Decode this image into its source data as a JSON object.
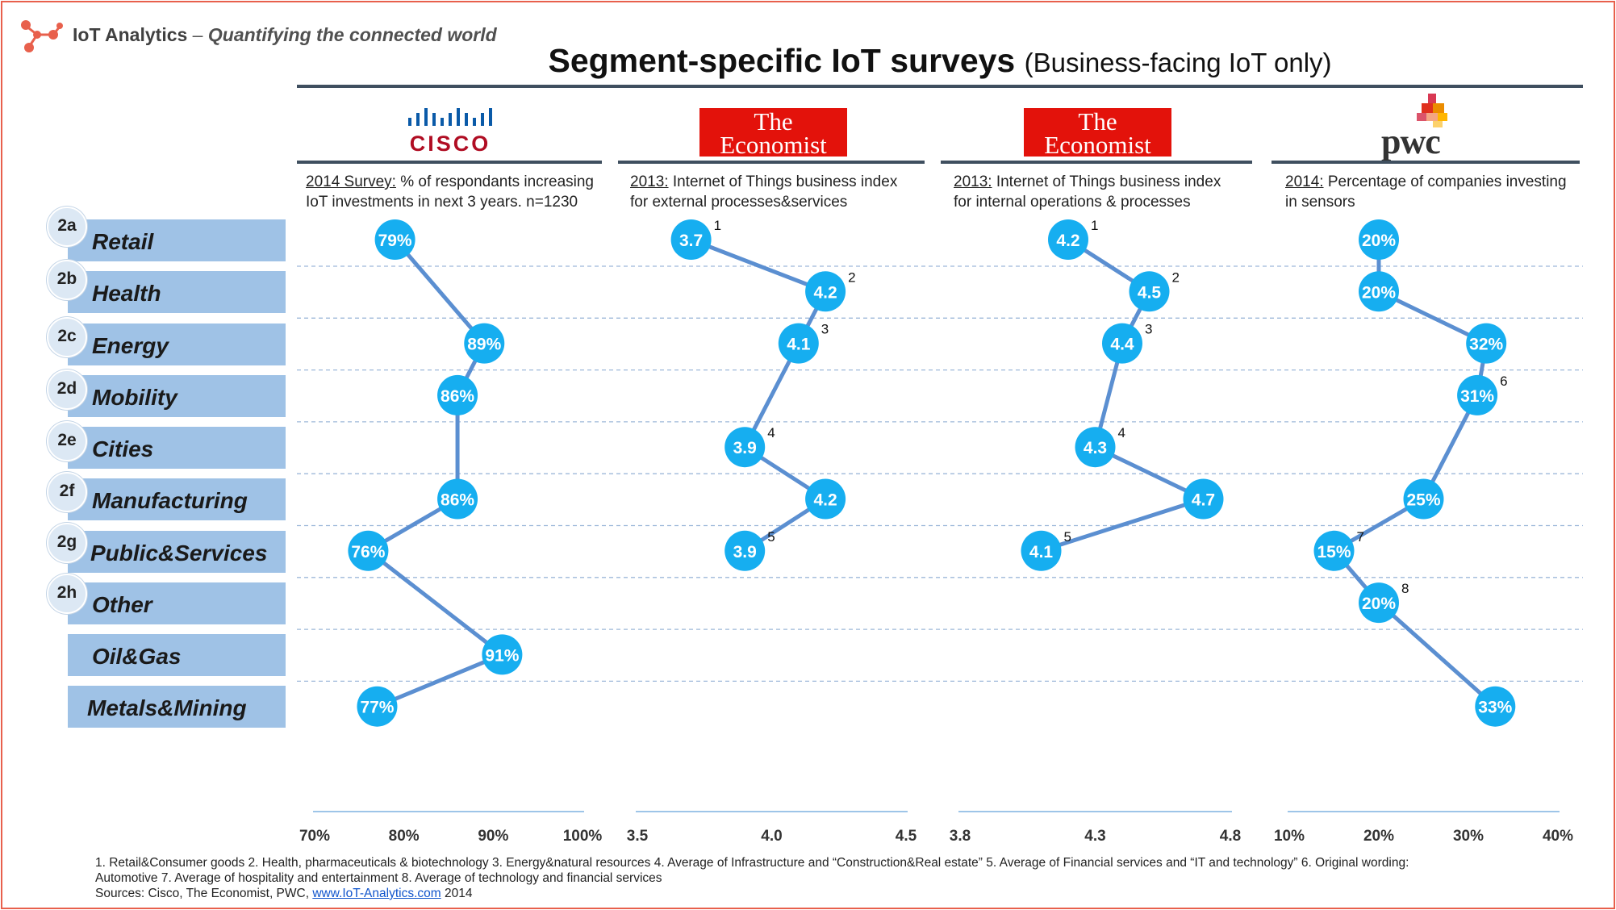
{
  "brand": {
    "name": "IoT Analytics",
    "dash": " – ",
    "tagline": "Quantifying the connected world"
  },
  "title": {
    "main": "Segment-specific IoT surveys",
    "sub": "(Business-facing IoT only)"
  },
  "logos": {
    "cisco": "CISCO",
    "economist_line1": "The",
    "economist_line2": "Economist",
    "pwc": "pwc"
  },
  "descriptions": [
    {
      "prefix": "2014 Survey:",
      "line1": " % of respondants increasing",
      "line2": "IoT investments in next 3 years. n=1230"
    },
    {
      "prefix": "2013:",
      "line1": " Internet of Things business index",
      "line2": "for external processes&services"
    },
    {
      "prefix": "2013:",
      "line1": " Internet of Things business index",
      "line2": "for internal operations & processes"
    },
    {
      "prefix": "2014:",
      "line1": " Percentage of companies investing",
      "line2": "in sensors"
    }
  ],
  "categories": [
    {
      "id": "2a",
      "label": "Retail"
    },
    {
      "id": "2b",
      "label": "Health"
    },
    {
      "id": "2c",
      "label": "Energy"
    },
    {
      "id": "2d",
      "label": "Mobility"
    },
    {
      "id": "2e",
      "label": "Cities"
    },
    {
      "id": "2f",
      "label": "Manufacturing"
    },
    {
      "id": "2g",
      "label": "Public&Services"
    },
    {
      "id": "2h",
      "label": "Other"
    },
    {
      "id": "",
      "label": "Oil&Gas"
    },
    {
      "id": "",
      "label": "Metals&Mining"
    }
  ],
  "colors": {
    "marker": "#16aef0",
    "line": "#5b8fd1",
    "bar": "#9fc2e6",
    "grid": "#9db8d9",
    "accent": "#e8604c"
  },
  "chart_data": [
    {
      "type": "line",
      "source": "Cisco",
      "categories": [
        "Retail",
        "Health",
        "Energy",
        "Mobility",
        "Cities",
        "Manufacturing",
        "Public&Services",
        "Other",
        "Oil&Gas",
        "Metals&Mining"
      ],
      "values": [
        79,
        null,
        89,
        86,
        null,
        86,
        76,
        null,
        91,
        77
      ],
      "labels": [
        "79%",
        null,
        "89%",
        "86%",
        null,
        "86%",
        "76%",
        null,
        "91%",
        "77%"
      ],
      "footnotes": [
        null,
        null,
        null,
        null,
        null,
        null,
        null,
        null,
        null,
        null
      ],
      "xlim": [
        70,
        100
      ],
      "ticks": [
        "70%",
        "80%",
        "90%",
        "100%"
      ]
    },
    {
      "type": "line",
      "source": "The Economist (external)",
      "categories": [
        "Retail",
        "Health",
        "Energy",
        "Mobility",
        "Cities",
        "Manufacturing",
        "Public&Services",
        "Other",
        "Oil&Gas",
        "Metals&Mining"
      ],
      "values": [
        3.7,
        4.2,
        4.1,
        null,
        3.9,
        4.2,
        3.9,
        null,
        null,
        null
      ],
      "labels": [
        "3.7",
        "4.2",
        "4.1",
        null,
        "3.9",
        "4.2",
        "3.9",
        null,
        null,
        null
      ],
      "footnotes": [
        "1",
        "2",
        "3",
        null,
        "4",
        null,
        "5",
        null,
        null,
        null
      ],
      "xlim": [
        3.5,
        4.5
      ],
      "ticks": [
        "3.5",
        "4.0",
        "4.5"
      ]
    },
    {
      "type": "line",
      "source": "The Economist (internal)",
      "categories": [
        "Retail",
        "Health",
        "Energy",
        "Mobility",
        "Cities",
        "Manufacturing",
        "Public&Services",
        "Other",
        "Oil&Gas",
        "Metals&Mining"
      ],
      "values": [
        4.2,
        4.5,
        4.4,
        null,
        4.3,
        4.7,
        4.1,
        null,
        null,
        null
      ],
      "labels": [
        "4.2",
        "4.5",
        "4.4",
        null,
        "4.3",
        "4.7",
        "4.1",
        null,
        null,
        null
      ],
      "footnotes": [
        "1",
        "2",
        "3",
        null,
        "4",
        null,
        "5",
        null,
        null,
        null
      ],
      "xlim": [
        3.8,
        4.8
      ],
      "ticks": [
        "3.8",
        "4.3",
        "4.8"
      ]
    },
    {
      "type": "line",
      "source": "PWC",
      "categories": [
        "Retail",
        "Health",
        "Energy",
        "Mobility",
        "Cities",
        "Manufacturing",
        "Public&Services",
        "Other",
        "Oil&Gas",
        "Metals&Mining"
      ],
      "values": [
        20,
        20,
        32,
        31,
        null,
        25,
        15,
        20,
        null,
        33
      ],
      "labels": [
        "20%",
        "20%",
        "32%",
        "31%",
        null,
        "25%",
        "15%",
        "20%",
        null,
        "33%"
      ],
      "footnotes": [
        null,
        null,
        null,
        "6",
        null,
        null,
        "7",
        "8",
        null,
        null
      ],
      "xlim": [
        10,
        40
      ],
      "ticks": [
        "10%",
        "20%",
        "30%",
        "40%"
      ]
    }
  ],
  "footnote": {
    "line1": "1. Retail&Consumer goods  2. Health, pharmaceuticals & biotechnology  3. Energy&natural resources  4. Average of Infrastructure and “Construction&Real estate”  5. Average of Financial services and “IT and technology” 6. Original wording:",
    "line2": "Automotive  7. Average of hospitality and entertainment  8. Average of technology and financial services",
    "sources_prefix": "Sources: Cisco, The Economist, PWC, ",
    "link": "www.IoT-Analytics.com",
    "year": " 2014"
  }
}
